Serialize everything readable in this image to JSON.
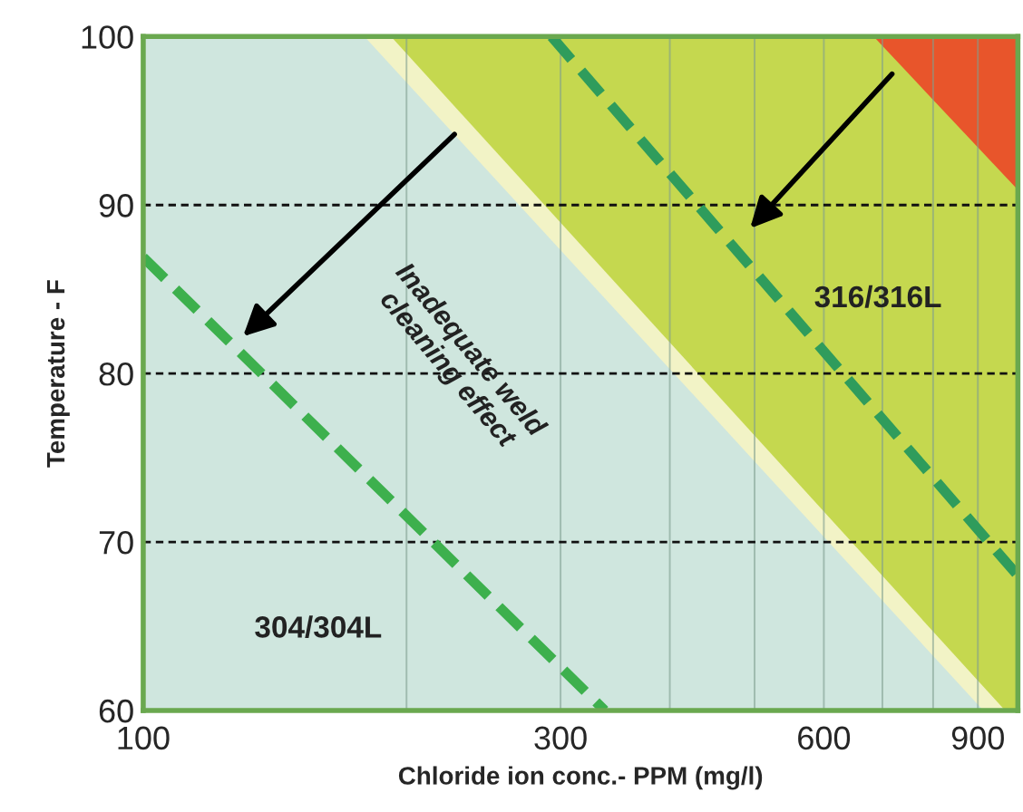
{
  "chart_data": {
    "type": "area",
    "xlabel": "Chloride ion conc.- PPM (mg/l)",
    "ylabel": "Temperature - F",
    "log": "x",
    "xlim": [
      100,
      1000
    ],
    "ylim": [
      60,
      100
    ],
    "xticks": [
      100,
      {
        "value": 200,
        "label": null
      },
      300,
      {
        "value": 400,
        "label": null
      },
      {
        "value": 500,
        "label": null
      },
      600,
      {
        "value": 700,
        "label": null
      },
      {
        "value": 800,
        "label": null
      },
      900
    ],
    "yticks": [
      60,
      70,
      80,
      90,
      100
    ],
    "grid": true,
    "legend": false,
    "series": [
      {
        "color": "#e8552b",
        "x": [
          684,
          1000
        ],
        "values": [
          100,
          100
        ]
      },
      {
        "color": "#c5d84f",
        "x": [
          100,
          684,
          1000
        ],
        "values": [
          100,
          100,
          90.9
        ]
      },
      {
        "color": "#f2f3c6",
        "x": [
          100,
          192,
          967
        ],
        "values": [
          100,
          100,
          60
        ]
      },
      {
        "color": "#cfe6de",
        "x": [
          100,
          179,
          913
        ],
        "values": [
          100,
          100,
          60
        ]
      },
      {
        "type": "line",
        "color": "#3db04d",
        "line_style": "dashed",
        "x": [
          100,
          337
        ],
        "values": [
          86.9,
          60
        ]
      },
      {
        "type": "line",
        "color": "#2f9c5c",
        "line_style": "dashed",
        "x": [
          293,
          1000
        ],
        "values": [
          100,
          68
        ]
      }
    ],
    "annotations": [
      "Inadequate weld\ncleaning effect",
      "316/316L",
      "304/304L"
    ]
  }
}
